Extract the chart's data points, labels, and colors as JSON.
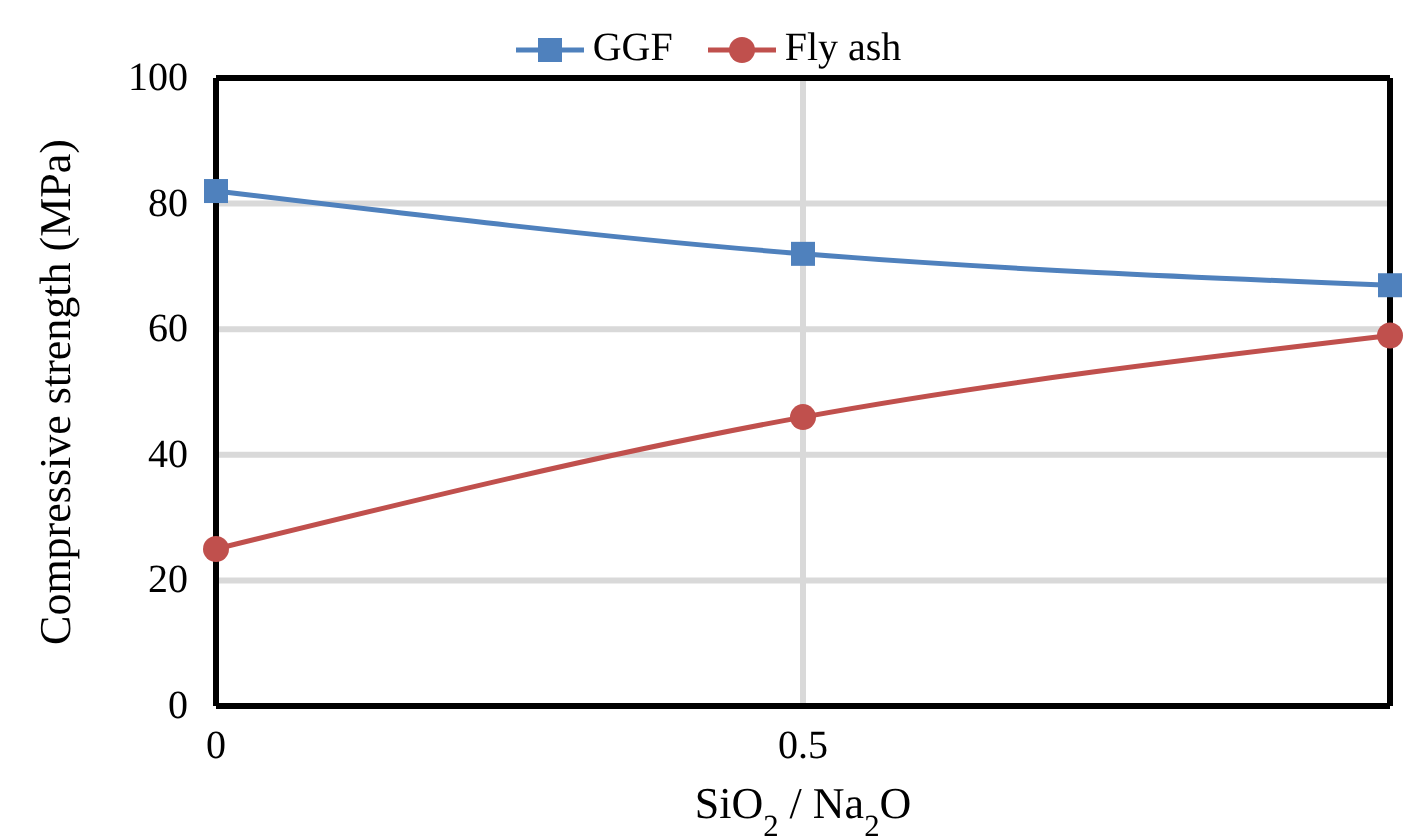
{
  "chart_data": {
    "type": "line",
    "xlabel": "SiO$_{2}$ / Na$_{2}$O",
    "ylabel": "Compressive strength (MPa)",
    "x": [
      0,
      0.5,
      1
    ],
    "series": [
      {
        "name": "GGF",
        "color": "#4f81bd",
        "values": [
          82,
          72,
          67
        ],
        "marker": "square"
      },
      {
        "name": "Fly ash",
        "color": "#c0504d",
        "values": [
          25,
          46,
          59
        ],
        "marker": "circle"
      }
    ],
    "xlim": [
      0,
      1
    ],
    "xticks": [
      0,
      0.5
    ],
    "ylim": [
      0,
      100
    ],
    "yticks": [
      0,
      20,
      40,
      60,
      80,
      100
    ],
    "grid": true,
    "legend": "top",
    "line_style": "solid"
  }
}
